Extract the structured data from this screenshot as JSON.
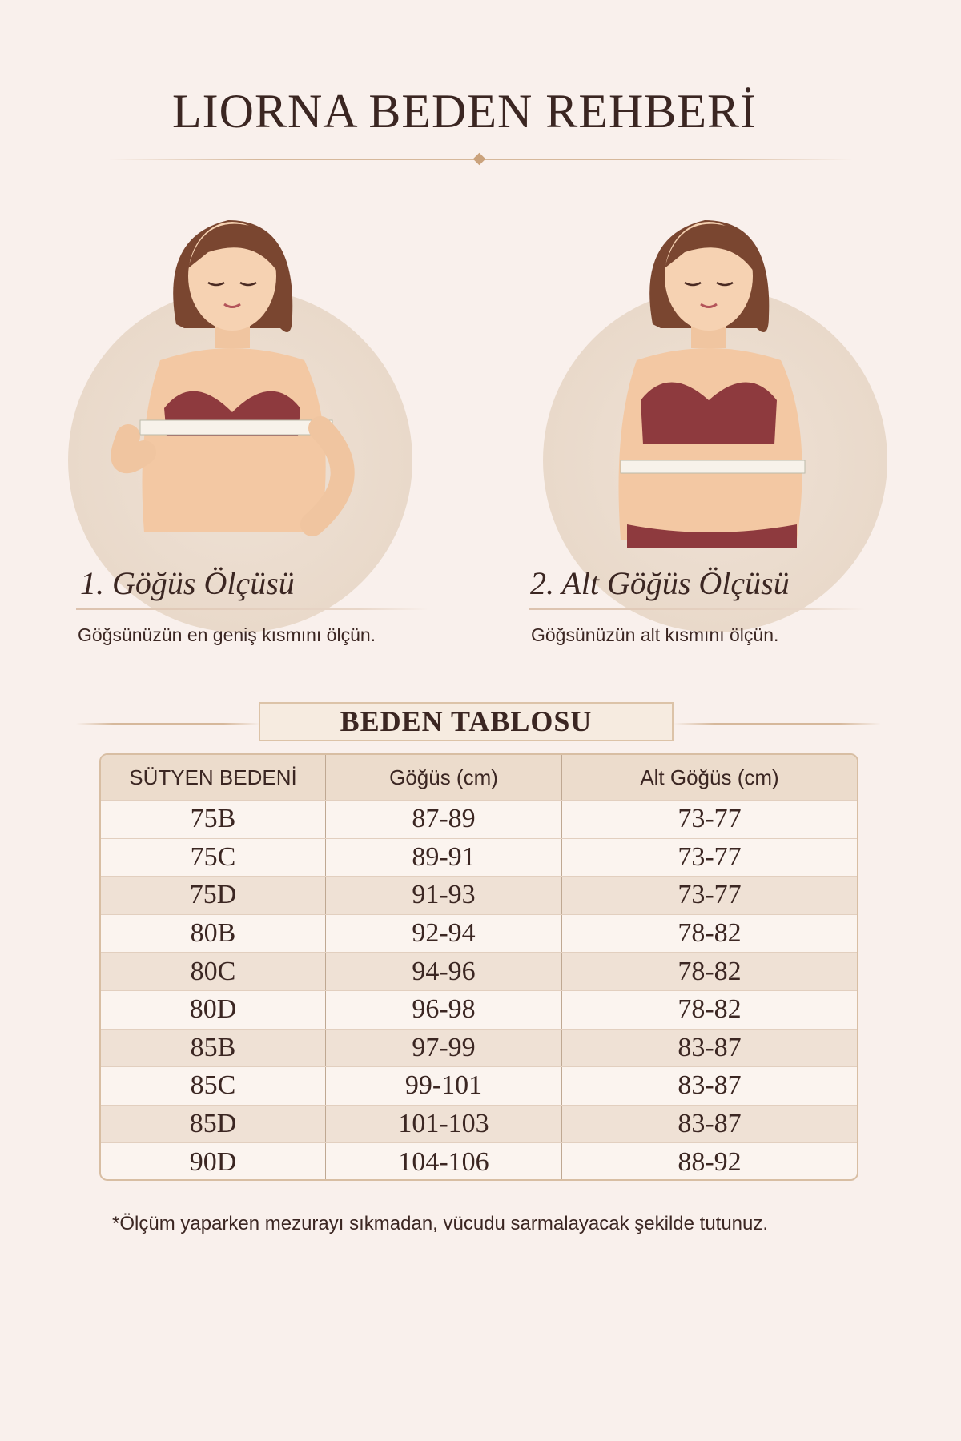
{
  "title": "LIORNA BEDEN REHBERİ",
  "steps": [
    {
      "heading": "1. Göğüs Ölçüsü",
      "description": "Göğsünüzün en geniş kısmını ölçün."
    },
    {
      "heading": "2. Alt Göğüs Ölçüsü",
      "description": "Göğsünüzün alt kısmını ölçün."
    }
  ],
  "table": {
    "title": "BEDEN TABLOSU",
    "headers": [
      "SÜTYEN BEDENİ",
      "Göğüs (cm)",
      "Alt Göğüs (cm)"
    ],
    "rows": [
      [
        "75B",
        "87-89",
        "73-77"
      ],
      [
        "75C",
        "89-91",
        "73-77"
      ],
      [
        "75D",
        "91-93",
        "73-77"
      ],
      [
        "80B",
        "92-94",
        "78-82"
      ],
      [
        "80C",
        "94-96",
        "78-82"
      ],
      [
        "80D",
        "96-98",
        "78-82"
      ],
      [
        "85B",
        "97-99",
        "83-87"
      ],
      [
        "85C",
        "99-101",
        "83-87"
      ],
      [
        "85D",
        "101-103",
        "83-87"
      ],
      [
        "90D",
        "104-106",
        "88-92"
      ]
    ]
  },
  "footnote": "*Ölçüm yaparken mezurayı sıkmadan, vücudu sarmalayacak şekilde tutunuz.",
  "colors": {
    "background": "#f9f0ec",
    "text": "#3b2622",
    "accent": "#caa27c",
    "bra": "#8e3a3e",
    "header_row": "#ecdccc"
  }
}
